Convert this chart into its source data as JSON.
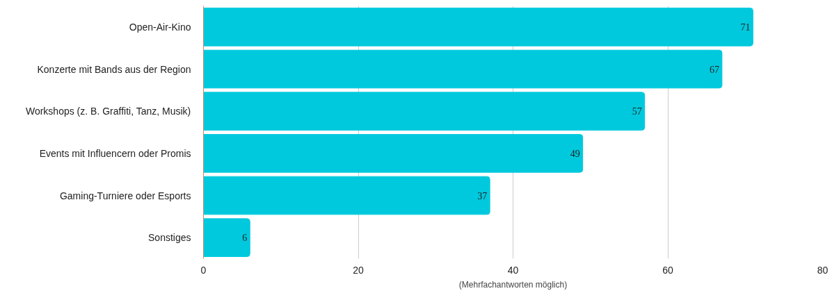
{
  "chart_data": {
    "type": "bar",
    "orientation": "horizontal",
    "categories": [
      "Open-Air-Kino",
      "Konzerte mit Bands aus der Region",
      "Workshops (z. B. Graffiti, Tanz, Musik)",
      "Events mit Influencern oder Promis",
      "Gaming-Turniere oder Esports",
      "Sonstiges"
    ],
    "values": [
      71,
      67,
      57,
      49,
      37,
      6
    ],
    "color": "#00c9dd",
    "xlim": [
      0,
      80
    ],
    "xticks": [
      0,
      20,
      40,
      60,
      80
    ],
    "grid": "x",
    "data_labels": true,
    "xlabel": "(Mehrfachantworten möglich)"
  }
}
